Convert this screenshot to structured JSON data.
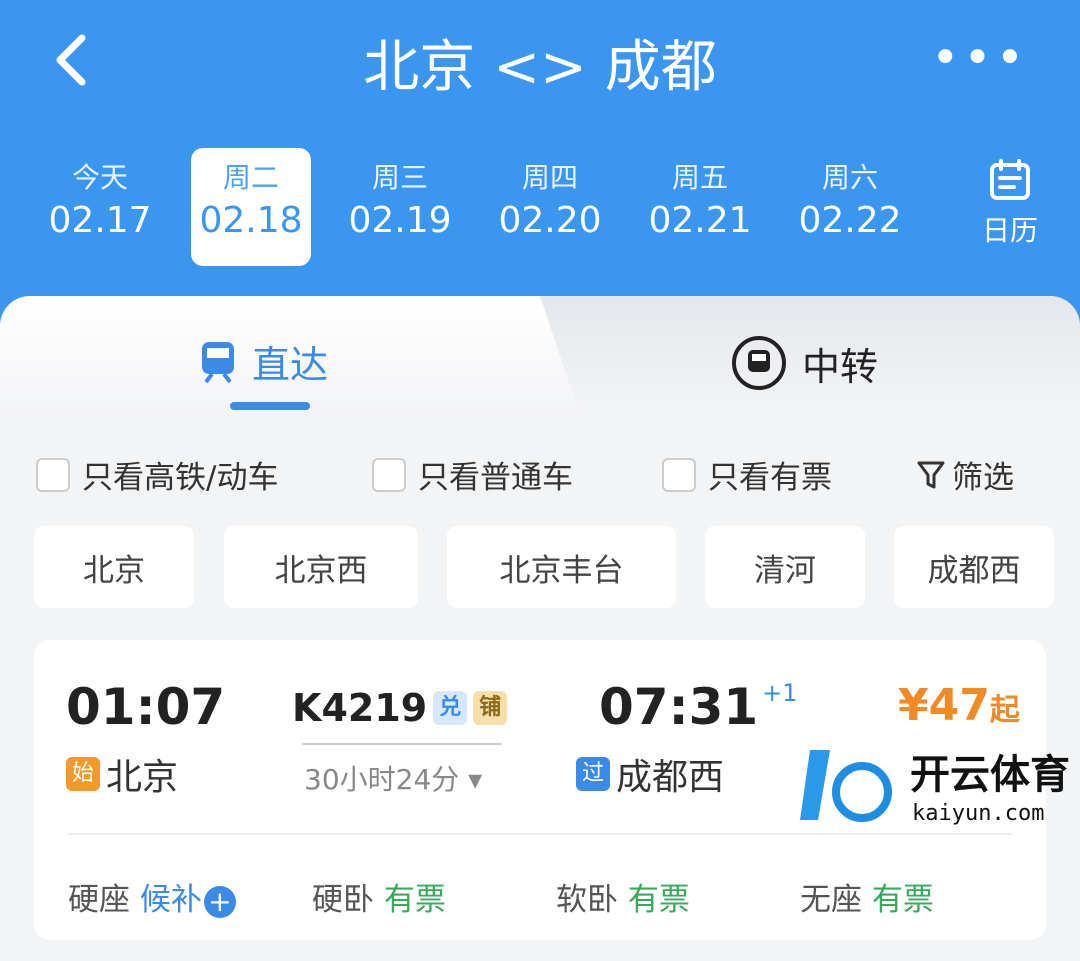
{
  "header": {
    "back_icon": "chevron-left-icon",
    "title": "北京 <> 成都",
    "more_icon": "more-horizontal-icon"
  },
  "dates": [
    {
      "day": "今天",
      "date": "02.17"
    },
    {
      "day": "周二",
      "date": "02.18",
      "selected": true
    },
    {
      "day": "周三",
      "date": "02.19"
    },
    {
      "day": "周四",
      "date": "02.20"
    },
    {
      "day": "周五",
      "date": "02.21"
    },
    {
      "day": "周六",
      "date": "02.22"
    }
  ],
  "calendar": {
    "label": "日历",
    "icon": "calendar-icon"
  },
  "tabs": [
    {
      "label": "直达",
      "icon": "train-icon",
      "active": true
    },
    {
      "label": "中转",
      "icon": "transfer-train-icon"
    }
  ],
  "filters": [
    {
      "label": "只看高铁/动车",
      "checked": false
    },
    {
      "label": "只看普通车",
      "checked": false
    },
    {
      "label": "只看有票",
      "checked": false
    }
  ],
  "filter_button": {
    "label": "筛选",
    "icon": "filter-icon"
  },
  "stations": [
    "北京",
    "北京西",
    "北京丰台",
    "清河",
    "成都西"
  ],
  "train": {
    "depart_time": "01:07",
    "number": "K4219",
    "badge1": "兑",
    "badge2": "铺",
    "arrive_time": "07:31",
    "day_offset": "+1",
    "price": "¥47",
    "price_suffix": "起",
    "origin_tag": "始",
    "origin": "北京",
    "duration": "30小时24分",
    "dest_tag": "过",
    "dest": "成都西",
    "seats": [
      {
        "type": "硬座",
        "status": "候补"
      },
      {
        "type": "硬卧",
        "status": "有票"
      },
      {
        "type": "软卧",
        "status": "有票"
      },
      {
        "type": "无座",
        "status": "有票"
      }
    ]
  },
  "colors": {
    "brand": "#3b96f0",
    "price": "#f08a24",
    "available": "#3aa85a",
    "waitlist": "#3b8ae6"
  },
  "watermark": {
    "text": "开云体育",
    "url_text": "kaiyun.com"
  }
}
